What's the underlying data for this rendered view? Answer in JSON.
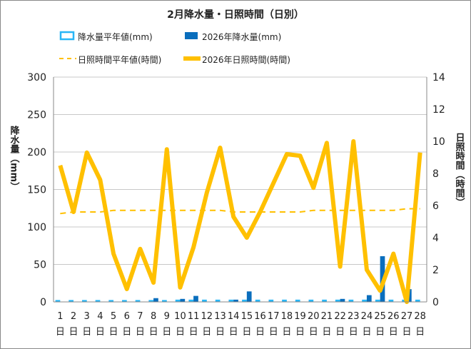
{
  "chart_data": {
    "type": "bar+line",
    "title": "2月降水量・日照時間（日別）",
    "ylabel_left": "降水量（mm）",
    "ylabel_right": "日照時間（時間）",
    "ylim_left": [
      0,
      300
    ],
    "yticks_left": [
      0,
      50,
      100,
      150,
      200,
      250,
      300
    ],
    "ylim_right": [
      0,
      14
    ],
    "yticks_right": [
      0,
      2,
      4,
      6,
      8,
      10,
      12,
      14
    ],
    "grid": true,
    "legend_position": "top",
    "categories": [
      "1日",
      "2日",
      "3日",
      "4日",
      "5日",
      "6日",
      "7日",
      "8日",
      "9日",
      "10日",
      "11日",
      "12日",
      "13日",
      "14日",
      "15日",
      "16日",
      "17日",
      "18日",
      "19日",
      "20日",
      "21日",
      "22日",
      "23日",
      "24日",
      "25日",
      "26日",
      "27日",
      "28日"
    ],
    "series": [
      {
        "name": "降水量平年値(mm)",
        "type": "bar",
        "axis": "left",
        "color": "#29b6f6",
        "values": [
          2.5,
          2.5,
          2.5,
          2.5,
          2.5,
          2.5,
          2.5,
          2.5,
          2.5,
          3,
          3,
          3,
          3,
          3,
          3,
          3,
          3,
          3,
          3,
          3,
          3,
          3,
          3,
          3,
          3,
          3,
          3,
          3
        ]
      },
      {
        "name": "2026年降水量(mm)",
        "type": "bar",
        "axis": "left",
        "color": "#0a6ebd",
        "values": [
          0,
          0,
          0,
          0,
          0,
          0,
          0,
          5,
          0,
          4,
          8,
          0,
          0,
          3,
          14,
          0,
          0,
          0,
          0,
          0,
          0,
          4,
          0,
          9,
          61,
          0,
          17,
          0
        ]
      },
      {
        "name": "日照時間平年値(時間)",
        "type": "line",
        "style": "dashed",
        "axis": "right",
        "color": "#ffc000",
        "values": [
          5.5,
          5.6,
          5.6,
          5.6,
          5.7,
          5.7,
          5.7,
          5.7,
          5.7,
          5.7,
          5.7,
          5.7,
          5.7,
          5.6,
          5.6,
          5.6,
          5.6,
          5.6,
          5.6,
          5.7,
          5.7,
          5.7,
          5.7,
          5.7,
          5.7,
          5.7,
          5.8,
          5.8
        ]
      },
      {
        "name": "2026年日照時間(時間)",
        "type": "line",
        "axis": "right",
        "color": "#ffc000",
        "values": [
          8.5,
          5.6,
          9.3,
          7.6,
          3.0,
          0.8,
          3.3,
          1.2,
          9.5,
          0.9,
          3.4,
          6.8,
          9.6,
          5.3,
          4.0,
          5.6,
          7.4,
          9.2,
          9.1,
          7.1,
          9.9,
          2.2,
          10.0,
          2.0,
          0.7,
          3.0,
          0.0,
          9.3
        ]
      }
    ]
  }
}
